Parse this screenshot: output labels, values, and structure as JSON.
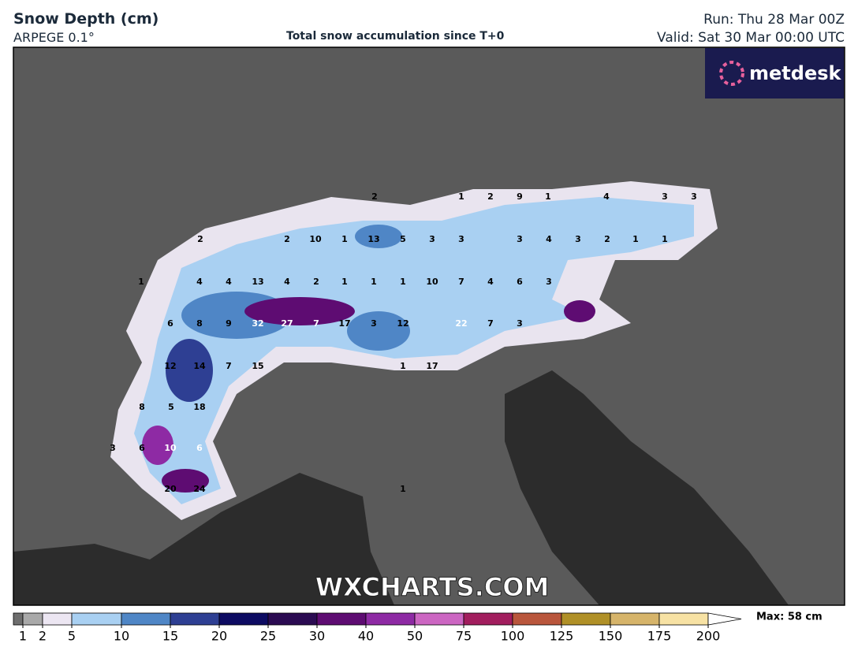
{
  "header": {
    "title": "Snow Depth (cm)",
    "model": "ARPEGE 0.1°",
    "subtitle": "Total snow accumulation since T+0",
    "run": "Run: Thu 28 Mar 00Z",
    "valid": "Valid: Sat 30 Mar 00:00 UTC"
  },
  "logo": "metdesk",
  "watermark": "WXCHARTS.COM",
  "map": {
    "labels": [
      2,
      1,
      2,
      9,
      1,
      4,
      3,
      3,
      2,
      2,
      10,
      1,
      13,
      5,
      3,
      3,
      3,
      4,
      3,
      2,
      1,
      1,
      1,
      4,
      4,
      13,
      4,
      2,
      1,
      1,
      1,
      10,
      7,
      4,
      6,
      3,
      6,
      8,
      9,
      32,
      27,
      7,
      17,
      3,
      12,
      22,
      7,
      3,
      12,
      14,
      7,
      15,
      1,
      17,
      8,
      5,
      18,
      3,
      6,
      10,
      6,
      20,
      24,
      1
    ]
  },
  "legend": {
    "ticks": [
      1,
      2,
      5,
      10,
      15,
      20,
      25,
      30,
      40,
      50,
      75,
      100,
      125,
      150,
      175,
      200
    ],
    "colors": [
      "#6e6e6e",
      "#a9a9a9",
      "#ece6f2",
      "#a9d0f2",
      "#4f86c6",
      "#2e3f93",
      "#0d0b62",
      "#2b0b52",
      "#5e0c72",
      "#8e2aa4",
      "#cc66c2",
      "#a21e5e",
      "#b9563c",
      "#b09027",
      "#d6b46a",
      "#f7e2a4"
    ],
    "max": "Max: 58 cm"
  }
}
